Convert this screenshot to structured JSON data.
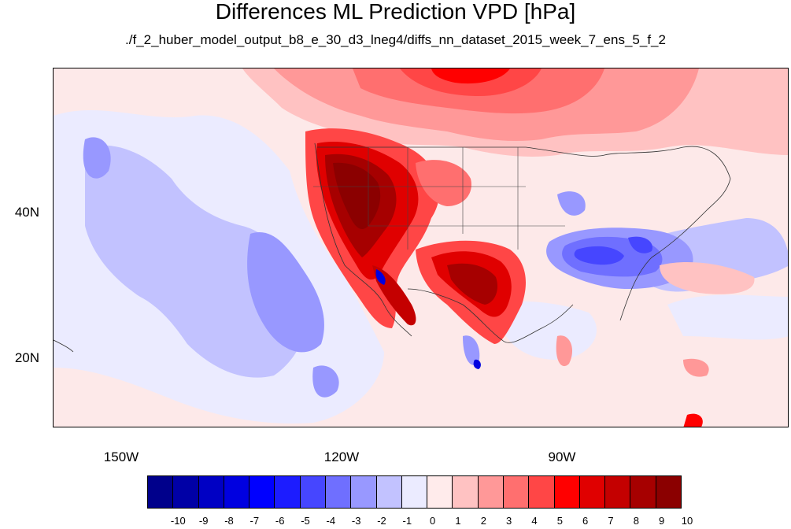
{
  "title": "Differences ML Prediction VPD [hPa]",
  "subtitle": "./f_2_huber_model_output_b8_e_30_d3_lneg4/diffs_nn_dataset_2015_week_7_ens_5_f_2",
  "axes": {
    "lat_labels": [
      "40N",
      "20N"
    ],
    "lon_labels": [
      "150W",
      "120W",
      "90W"
    ]
  },
  "colorbar": {
    "labels": [
      "-10",
      "-9",
      "-8",
      "-7",
      "-6",
      "-5",
      "-4",
      "-3",
      "-2",
      "-1",
      "0",
      "1",
      "2",
      "3",
      "4",
      "5",
      "6",
      "7",
      "8",
      "9",
      "10"
    ],
    "colors": [
      "#00008b",
      "#0000a6",
      "#0000c4",
      "#0000e0",
      "#0000ff",
      "#1c1cff",
      "#4646ff",
      "#6f6fff",
      "#9898ff",
      "#c2c2ff",
      "#ebebff",
      "#ffebeb",
      "#ffc2c2",
      "#ff9898",
      "#ff6f6f",
      "#ff4646",
      "#ff0000",
      "#e00000",
      "#c40000",
      "#a60000",
      "#8b0000"
    ]
  }
}
